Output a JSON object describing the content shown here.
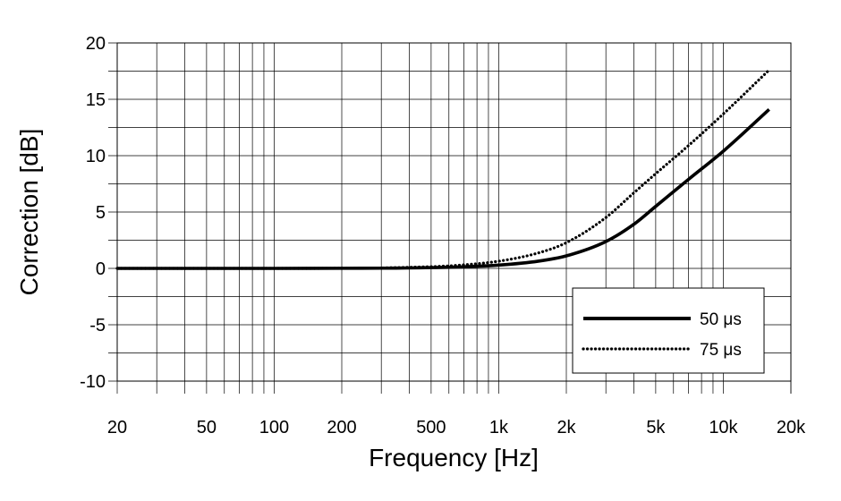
{
  "chart_data": {
    "type": "line",
    "xscale": "log",
    "xlabel": "Frequency [Hz]",
    "ylabel": "Correction [dB]",
    "xlim": [
      20,
      20000
    ],
    "ylim": [
      -10,
      20
    ],
    "grid": true,
    "x_ticks": [
      {
        "value": 20,
        "label": "20"
      },
      {
        "value": 50,
        "label": "50"
      },
      {
        "value": 100,
        "label": "100"
      },
      {
        "value": 200,
        "label": "200"
      },
      {
        "value": 500,
        "label": "500"
      },
      {
        "value": 1000,
        "label": "1k"
      },
      {
        "value": 2000,
        "label": "2k"
      },
      {
        "value": 5000,
        "label": "5k"
      },
      {
        "value": 10000,
        "label": "10k"
      },
      {
        "value": 20000,
        "label": "20k"
      }
    ],
    "y_ticks": [
      {
        "value": 20,
        "label": "20"
      },
      {
        "value": 15,
        "label": "15"
      },
      {
        "value": 10,
        "label": "10"
      },
      {
        "value": 5,
        "label": "5"
      },
      {
        "value": 0,
        "label": "0"
      },
      {
        "value": -5,
        "label": "-5"
      },
      {
        "value": -10,
        "label": "-10"
      }
    ],
    "legend_position": "bottom-right",
    "series": [
      {
        "name": "50 μs",
        "style": "solid",
        "color": "#000000",
        "x": [
          20,
          50,
          100,
          200,
          300,
          400,
          500,
          700,
          1000,
          1500,
          2000,
          3000,
          4000,
          5000,
          7000,
          10000,
          16000
        ],
        "y": [
          0.0,
          0.0,
          0.0,
          0.01,
          0.02,
          0.04,
          0.07,
          0.14,
          0.29,
          0.64,
          1.11,
          2.38,
          3.92,
          5.5,
          7.9,
          10.4,
          14.1
        ]
      },
      {
        "name": "75 μs",
        "style": "dotted",
        "color": "#000000",
        "x": [
          20,
          50,
          100,
          200,
          300,
          400,
          500,
          700,
          1000,
          1500,
          2000,
          3000,
          4000,
          5000,
          7000,
          10000,
          16000
        ],
        "y": [
          0.0,
          0.0,
          0.0,
          0.01,
          0.04,
          0.1,
          0.15,
          0.31,
          0.64,
          1.37,
          2.28,
          4.51,
          6.71,
          8.4,
          10.9,
          13.7,
          17.6
        ]
      }
    ]
  }
}
